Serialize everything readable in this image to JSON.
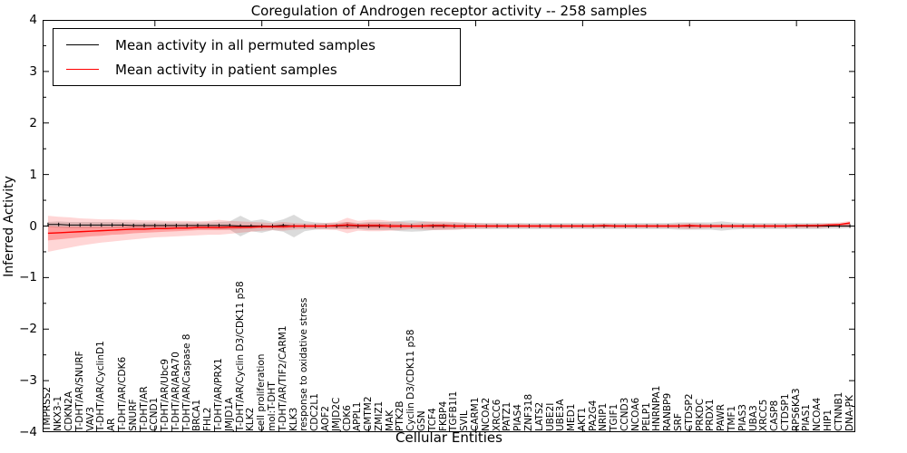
{
  "chart_data": {
    "type": "line",
    "title": "Coregulation of Androgen receptor activity -- 258 samples",
    "xlabel": "Cellular Entities",
    "ylabel": "Inferred Activity",
    "ylim": [
      -4,
      4
    ],
    "ytick_values": [
      4,
      3,
      2,
      1,
      0,
      -1,
      -2,
      -3,
      -4
    ],
    "ytick_labels": [
      "4",
      "3",
      "2",
      "1",
      "0",
      "−1",
      "−2",
      "−3",
      "−4"
    ],
    "ytick_minor_values": [
      3.5,
      2.5,
      1.5,
      0.5,
      -0.5,
      -1.5,
      -2.5,
      -3.5
    ],
    "xtick_major_indices": [
      10,
      20,
      30,
      40,
      50,
      60,
      70
    ],
    "grid": false,
    "legend": {
      "position": "upper left",
      "entries": [
        {
          "label": "Mean activity in all permuted samples",
          "color": "#000000"
        },
        {
          "label": "Mean activity in patient samples",
          "color": "#ff0000"
        }
      ]
    },
    "categories": [
      "TMPRSS2",
      "NKX3-1",
      "CDKN2A",
      "T-DHT/AR/SNURF",
      "VAV3",
      "T-DHT/AR/CyclinD1",
      "AR",
      "T-DHT/AR/CDK6",
      "SNURF",
      "T-DHT/AR",
      "CCND1",
      "T-DHT/AR/Ubc9",
      "T-DHT/AR/ARA70",
      "T-DHT/AR/Caspase 8",
      "BRCA1",
      "FHL2",
      "T-DHT/AR/PRX1",
      "JMJD1A",
      "T-DHT/AR/Cyclin D3/CDK11 p58",
      "KLK2",
      "cell proliferation",
      "mol:T-DHT",
      "T-DHT/AR/TIF2/CARM1",
      "KLK3",
      "response to oxidative stress",
      "CDC2L1",
      "AOF2",
      "JMJD2C",
      "CDK6",
      "APPL1",
      "CMTM2",
      "ZMIZ1",
      "MAK",
      "PTK2B",
      "Cyclin D3/CDK11 p58",
      "GSN",
      "TCF4",
      "FKBP4",
      "TGFB1I1",
      "SVIL",
      "CARM1",
      "NCOA2",
      "XRCC6",
      "PATZ1",
      "PIAS4",
      "ZNF318",
      "LATS2",
      "UBE2I",
      "UBE3A",
      "MED1",
      "AKT1",
      "PA2G4",
      "NRIP1",
      "TGIF1",
      "CCND3",
      "NCOA6",
      "PELP1",
      "HNRNPA1",
      "RANBP9",
      "SRF",
      "CTDSP2",
      "PRKDC",
      "PRDX1",
      "PAWR",
      "TMF1",
      "PIAS3",
      "UBA3",
      "XRCC5",
      "CASP8",
      "CTDSP1",
      "RPS6KA3",
      "PIAS1",
      "NCOA4",
      "HIP1",
      "CTNNB1",
      "DNA-PK"
    ],
    "series": [
      {
        "name": "Mean activity in all permuted samples",
        "color": "#000000",
        "values": [
          0.03,
          0.03,
          0.02,
          0.02,
          0.02,
          0.02,
          0.02,
          0.02,
          0.01,
          0.01,
          0.01,
          0.01,
          0.01,
          0.01,
          0.01,
          0.01,
          0.01,
          0.01,
          0.0,
          0.0,
          0.0,
          0.0,
          0.01,
          0.0,
          0.0,
          0.0,
          0.0,
          0.0,
          0.01,
          0.0,
          0.0,
          0.0,
          0.0,
          0.0,
          0.0,
          0.0,
          0.0,
          0.0,
          0.0,
          0.0,
          0.0,
          0.0,
          0.0,
          0.0,
          0.0,
          0.0,
          0.0,
          0.0,
          0.0,
          0.0,
          0.0,
          0.0,
          0.0,
          0.0,
          0.0,
          0.0,
          0.0,
          0.0,
          0.0,
          0.0,
          0.0,
          0.0,
          0.0,
          0.0,
          0.0,
          0.0,
          0.0,
          0.0,
          0.0,
          0.0,
          0.0,
          0.0,
          0.0,
          0.0,
          0.0,
          0.0
        ],
        "band_halfwidth": [
          0.05,
          0.06,
          0.06,
          0.06,
          0.06,
          0.06,
          0.06,
          0.06,
          0.06,
          0.06,
          0.06,
          0.06,
          0.06,
          0.06,
          0.06,
          0.06,
          0.07,
          0.08,
          0.2,
          0.1,
          0.13,
          0.08,
          0.12,
          0.22,
          0.1,
          0.07,
          0.06,
          0.06,
          0.07,
          0.06,
          0.08,
          0.08,
          0.08,
          0.1,
          0.11,
          0.1,
          0.08,
          0.07,
          0.07,
          0.06,
          0.06,
          0.06,
          0.06,
          0.06,
          0.06,
          0.06,
          0.06,
          0.06,
          0.06,
          0.06,
          0.06,
          0.06,
          0.06,
          0.06,
          0.06,
          0.06,
          0.06,
          0.06,
          0.06,
          0.07,
          0.07,
          0.07,
          0.07,
          0.09,
          0.07,
          0.06,
          0.06,
          0.06,
          0.06,
          0.06,
          0.06,
          0.06,
          0.06,
          0.05,
          0.05,
          0.04
        ]
      },
      {
        "name": "Mean activity in patient samples",
        "color": "#ff0000",
        "values": [
          -0.14,
          -0.13,
          -0.12,
          -0.11,
          -0.1,
          -0.09,
          -0.08,
          -0.07,
          -0.06,
          -0.06,
          -0.05,
          -0.05,
          -0.04,
          -0.04,
          -0.03,
          -0.03,
          -0.03,
          -0.02,
          -0.02,
          -0.02,
          -0.01,
          -0.01,
          -0.01,
          0.0,
          0.0,
          0.0,
          0.0,
          0.01,
          0.02,
          0.01,
          0.01,
          0.01,
          0.0,
          0.0,
          0.0,
          0.0,
          0.01,
          0.01,
          0.0,
          0.0,
          0.0,
          0.0,
          0.0,
          0.0,
          0.0,
          0.0,
          0.0,
          0.0,
          0.0,
          0.0,
          0.0,
          0.0,
          0.01,
          0.0,
          0.0,
          0.0,
          0.0,
          0.0,
          0.0,
          0.0,
          0.01,
          0.0,
          0.0,
          0.0,
          0.0,
          0.0,
          0.0,
          0.0,
          0.0,
          0.0,
          0.01,
          0.01,
          0.01,
          0.02,
          0.03,
          0.06
        ],
        "band_outer_hi": [
          0.2,
          0.18,
          0.17,
          0.15,
          0.14,
          0.13,
          0.13,
          0.12,
          0.12,
          0.11,
          0.11,
          0.1,
          0.1,
          0.1,
          0.09,
          0.1,
          0.12,
          0.1,
          0.09,
          0.08,
          0.07,
          0.06,
          0.08,
          0.06,
          0.05,
          0.05,
          0.06,
          0.08,
          0.16,
          0.1,
          0.12,
          0.12,
          0.1,
          0.08,
          0.06,
          0.08,
          0.09,
          0.09,
          0.08,
          0.07,
          0.06,
          0.05,
          0.05,
          0.04,
          0.05,
          0.04,
          0.04,
          0.04,
          0.04,
          0.04,
          0.04,
          0.04,
          0.05,
          0.04,
          0.04,
          0.04,
          0.04,
          0.04,
          0.04,
          0.05,
          0.06,
          0.05,
          0.04,
          0.04,
          0.04,
          0.04,
          0.04,
          0.04,
          0.04,
          0.04,
          0.04,
          0.04,
          0.05,
          0.06,
          0.07,
          0.1
        ],
        "band_outer_lo": [
          -0.5,
          -0.46,
          -0.42,
          -0.38,
          -0.35,
          -0.32,
          -0.3,
          -0.28,
          -0.26,
          -0.24,
          -0.22,
          -0.21,
          -0.2,
          -0.19,
          -0.18,
          -0.17,
          -0.17,
          -0.15,
          -0.13,
          -0.11,
          -0.09,
          -0.08,
          -0.09,
          -0.07,
          -0.06,
          -0.06,
          -0.07,
          -0.08,
          -0.14,
          -0.09,
          -0.1,
          -0.1,
          -0.09,
          -0.08,
          -0.06,
          -0.07,
          -0.08,
          -0.08,
          -0.07,
          -0.06,
          -0.05,
          -0.05,
          -0.04,
          -0.04,
          -0.04,
          -0.04,
          -0.04,
          -0.04,
          -0.04,
          -0.04,
          -0.04,
          -0.04,
          -0.04,
          -0.04,
          -0.04,
          -0.04,
          -0.04,
          -0.04,
          -0.04,
          -0.05,
          -0.06,
          -0.05,
          -0.04,
          -0.04,
          -0.04,
          -0.04,
          -0.04,
          -0.04,
          -0.04,
          -0.04,
          -0.04,
          -0.04,
          -0.04,
          -0.03,
          -0.02,
          -0.02
        ],
        "band_inner_hi": [
          0.0,
          -0.01,
          -0.01,
          -0.01,
          -0.01,
          -0.01,
          -0.01,
          0.0,
          0.0,
          0.0,
          0.0,
          0.0,
          0.01,
          0.01,
          0.01,
          0.01,
          0.02,
          0.02,
          0.02,
          0.02,
          0.02,
          0.01,
          0.03,
          0.02,
          0.02,
          0.02,
          0.02,
          0.03,
          0.08,
          0.04,
          0.05,
          0.05,
          0.04,
          0.03,
          0.02,
          0.03,
          0.04,
          0.04,
          0.03,
          0.03,
          0.02,
          0.02,
          0.02,
          0.02,
          0.02,
          0.02,
          0.02,
          0.02,
          0.02,
          0.02,
          0.02,
          0.02,
          0.02,
          0.02,
          0.02,
          0.02,
          0.02,
          0.02,
          0.02,
          0.02,
          0.03,
          0.02,
          0.02,
          0.02,
          0.02,
          0.02,
          0.02,
          0.02,
          0.02,
          0.02,
          0.02,
          0.02,
          0.02,
          0.03,
          0.04,
          0.08
        ],
        "band_inner_lo": [
          -0.28,
          -0.26,
          -0.24,
          -0.22,
          -0.2,
          -0.19,
          -0.17,
          -0.16,
          -0.14,
          -0.13,
          -0.12,
          -0.11,
          -0.1,
          -0.09,
          -0.08,
          -0.08,
          -0.08,
          -0.07,
          -0.06,
          -0.05,
          -0.04,
          -0.04,
          -0.05,
          -0.03,
          -0.03,
          -0.03,
          -0.03,
          -0.04,
          -0.06,
          -0.04,
          -0.04,
          -0.04,
          -0.04,
          -0.03,
          -0.03,
          -0.03,
          -0.04,
          -0.04,
          -0.03,
          -0.03,
          -0.02,
          -0.02,
          -0.02,
          -0.02,
          -0.02,
          -0.02,
          -0.02,
          -0.02,
          -0.02,
          -0.02,
          -0.02,
          -0.02,
          -0.02,
          -0.02,
          -0.02,
          -0.02,
          -0.02,
          -0.02,
          -0.02,
          -0.02,
          -0.03,
          -0.02,
          -0.02,
          -0.02,
          -0.02,
          -0.02,
          -0.02,
          -0.02,
          -0.02,
          -0.02,
          -0.02,
          -0.02,
          -0.02,
          -0.01,
          0.0,
          0.02
        ]
      }
    ],
    "colors": {
      "line_permuted": "#000000",
      "line_patient": "#ff0000",
      "band_permuted": "#888888",
      "band_patient": "#ff0000",
      "frame": "#000000",
      "background": "#ffffff"
    }
  }
}
